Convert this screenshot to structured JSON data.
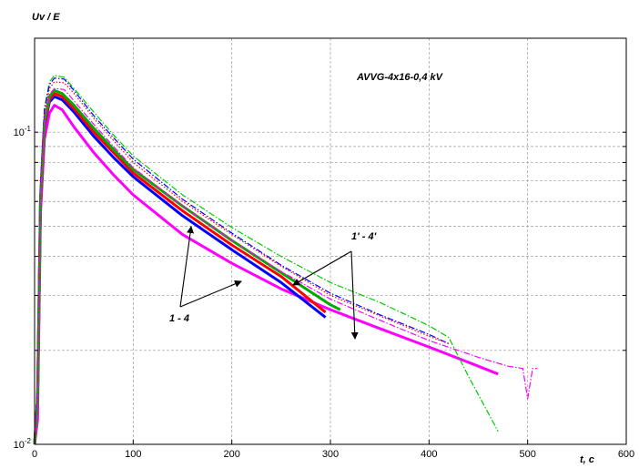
{
  "chart_data": {
    "type": "line",
    "ylabel": "Uv / E",
    "xlabel": "t, c",
    "annotation_text": "AVVG-4x16-0,4 kV",
    "group_labels": {
      "measured": "1 - 4",
      "calculated": "1' - 4'"
    },
    "xlim": [
      0,
      600
    ],
    "ylim": [
      0.01,
      0.2
    ],
    "yscale": "log",
    "grid": true,
    "x_ticks": [
      "0",
      "100",
      "200",
      "300",
      "400",
      "500",
      "600"
    ],
    "y_ticks": [
      {
        "base": "10",
        "exp": "-1",
        "value": 0.1
      },
      {
        "base": "10",
        "exp": "-2",
        "value": 0.01
      }
    ],
    "series": [
      {
        "color": "#ff00ff",
        "style": "solid",
        "width": 3,
        "points": [
          [
            0,
            0.01
          ],
          [
            3,
            0.012
          ],
          [
            6,
            0.055
          ],
          [
            10,
            0.095
          ],
          [
            15,
            0.115
          ],
          [
            20,
            0.122
          ],
          [
            28,
            0.118
          ],
          [
            40,
            0.104
          ],
          [
            60,
            0.086
          ],
          [
            80,
            0.073
          ],
          [
            100,
            0.063
          ],
          [
            150,
            0.047
          ],
          [
            200,
            0.038
          ],
          [
            250,
            0.0315
          ],
          [
            300,
            0.027
          ],
          [
            350,
            0.0235
          ],
          [
            400,
            0.0205
          ],
          [
            450,
            0.0178
          ],
          [
            470,
            0.0168
          ]
        ]
      },
      {
        "color": "#0000ff",
        "style": "solid",
        "width": 3,
        "points": [
          [
            0,
            0.01
          ],
          [
            3,
            0.014
          ],
          [
            6,
            0.06
          ],
          [
            10,
            0.105
          ],
          [
            15,
            0.125
          ],
          [
            20,
            0.13
          ],
          [
            28,
            0.127
          ],
          [
            40,
            0.116
          ],
          [
            60,
            0.097
          ],
          [
            80,
            0.083
          ],
          [
            100,
            0.072
          ],
          [
            150,
            0.054
          ],
          [
            200,
            0.042
          ],
          [
            250,
            0.033
          ],
          [
            295,
            0.0255
          ]
        ]
      },
      {
        "color": "#ff0000",
        "style": "solid",
        "width": 3,
        "points": [
          [
            0,
            0.01
          ],
          [
            3,
            0.014
          ],
          [
            6,
            0.06
          ],
          [
            10,
            0.106
          ],
          [
            15,
            0.127
          ],
          [
            20,
            0.133
          ],
          [
            28,
            0.13
          ],
          [
            40,
            0.119
          ],
          [
            60,
            0.1
          ],
          [
            80,
            0.086
          ],
          [
            100,
            0.074
          ],
          [
            150,
            0.056
          ],
          [
            200,
            0.0435
          ],
          [
            250,
            0.0345
          ],
          [
            295,
            0.0265
          ]
        ]
      },
      {
        "color": "#00aa00",
        "style": "solid",
        "width": 3,
        "points": [
          [
            0,
            0.01
          ],
          [
            3,
            0.014
          ],
          [
            6,
            0.062
          ],
          [
            10,
            0.108
          ],
          [
            15,
            0.13
          ],
          [
            20,
            0.136
          ],
          [
            28,
            0.133
          ],
          [
            40,
            0.122
          ],
          [
            60,
            0.103
          ],
          [
            80,
            0.088
          ],
          [
            100,
            0.076
          ],
          [
            150,
            0.058
          ],
          [
            200,
            0.045
          ],
          [
            250,
            0.0355
          ],
          [
            300,
            0.028
          ],
          [
            310,
            0.027
          ]
        ]
      },
      {
        "color": "#00cc00",
        "style": "dashdot",
        "width": 1.2,
        "points": [
          [
            0,
            0.01
          ],
          [
            3,
            0.015
          ],
          [
            6,
            0.07
          ],
          [
            10,
            0.12
          ],
          [
            15,
            0.145
          ],
          [
            20,
            0.152
          ],
          [
            30,
            0.15
          ],
          [
            40,
            0.138
          ],
          [
            60,
            0.116
          ],
          [
            80,
            0.098
          ],
          [
            100,
            0.084
          ],
          [
            150,
            0.063
          ],
          [
            200,
            0.0495
          ],
          [
            250,
            0.04
          ],
          [
            300,
            0.033
          ],
          [
            350,
            0.0285
          ],
          [
            400,
            0.024
          ],
          [
            420,
            0.022
          ],
          [
            440,
            0.0165
          ],
          [
            470,
            0.011
          ]
        ]
      },
      {
        "color": "#0000ff",
        "style": "dashdot",
        "width": 1.2,
        "points": [
          [
            0,
            0.01
          ],
          [
            3,
            0.015
          ],
          [
            6,
            0.068
          ],
          [
            10,
            0.118
          ],
          [
            15,
            0.142
          ],
          [
            20,
            0.149
          ],
          [
            30,
            0.148
          ],
          [
            40,
            0.136
          ],
          [
            60,
            0.113
          ],
          [
            80,
            0.096
          ],
          [
            100,
            0.082
          ],
          [
            150,
            0.061
          ],
          [
            200,
            0.0475
          ],
          [
            250,
            0.0375
          ],
          [
            300,
            0.0305
          ],
          [
            350,
            0.026
          ],
          [
            400,
            0.0225
          ],
          [
            420,
            0.021
          ]
        ]
      },
      {
        "color": "#ff0000",
        "style": "dotted",
        "width": 1.2,
        "points": [
          [
            0,
            0.01
          ],
          [
            3,
            0.015
          ],
          [
            6,
            0.066
          ],
          [
            10,
            0.115
          ],
          [
            15,
            0.138
          ],
          [
            20,
            0.145
          ],
          [
            30,
            0.144
          ],
          [
            40,
            0.133
          ],
          [
            60,
            0.111
          ],
          [
            80,
            0.094
          ],
          [
            100,
            0.08
          ],
          [
            150,
            0.06
          ],
          [
            200,
            0.047
          ],
          [
            250,
            0.0372
          ],
          [
            300,
            0.03
          ],
          [
            350,
            0.0258
          ],
          [
            400,
            0.0222
          ],
          [
            420,
            0.021
          ]
        ]
      },
      {
        "color": "#ff00ff",
        "style": "dashdot",
        "width": 1.2,
        "points": [
          [
            0,
            0.01
          ],
          [
            3,
            0.014
          ],
          [
            6,
            0.063
          ],
          [
            10,
            0.11
          ],
          [
            15,
            0.132
          ],
          [
            20,
            0.138
          ],
          [
            30,
            0.137
          ],
          [
            40,
            0.126
          ],
          [
            60,
            0.106
          ],
          [
            80,
            0.09
          ],
          [
            100,
            0.077
          ],
          [
            150,
            0.058
          ],
          [
            200,
            0.045
          ],
          [
            250,
            0.0358
          ],
          [
            300,
            0.0292
          ],
          [
            350,
            0.025
          ],
          [
            400,
            0.0215
          ],
          [
            450,
            0.019
          ],
          [
            480,
            0.0178
          ],
          [
            495,
            0.0175
          ],
          [
            500,
            0.014
          ],
          [
            505,
            0.0175
          ],
          [
            510,
            0.0175
          ]
        ]
      }
    ]
  }
}
